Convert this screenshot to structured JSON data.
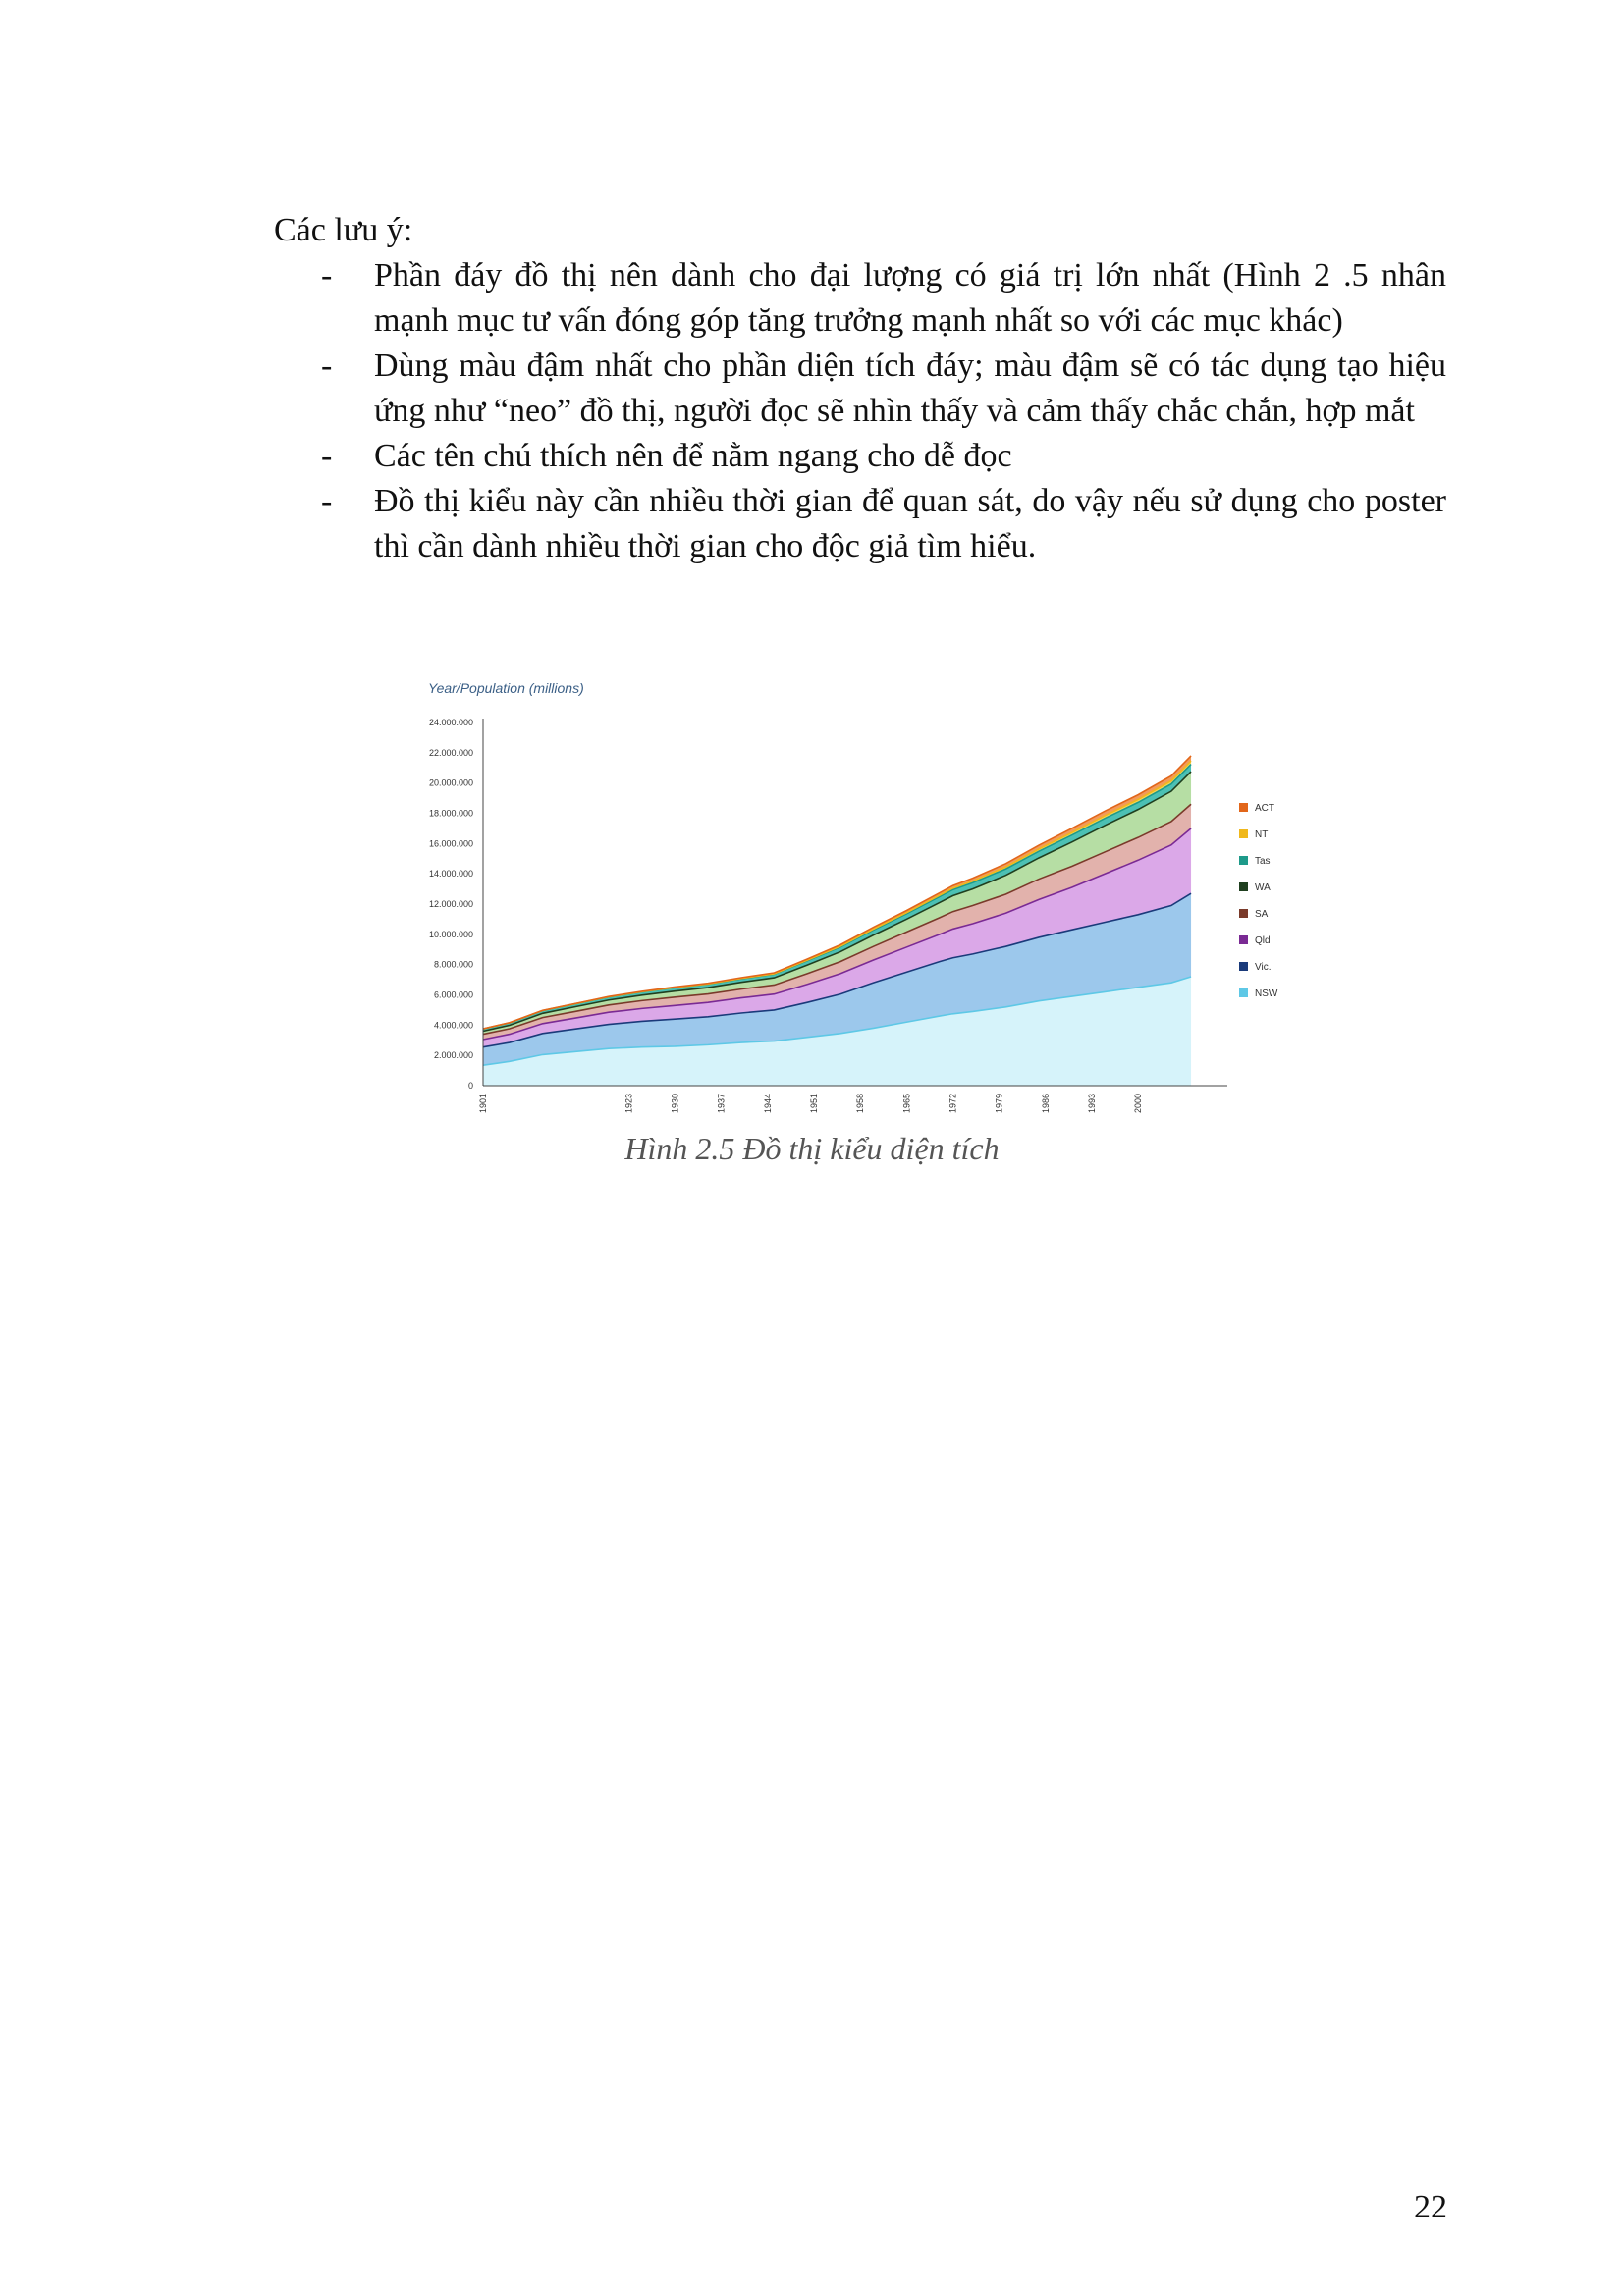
{
  "document": {
    "intro": "Các lưu ý:",
    "bullets": [
      "Phần đáy đồ thị nên dành cho đại lượng có giá trị lớn nhất (Hình 2 .5 nhân mạnh mục tư vấn đóng góp tăng trưởng mạnh nhất so với các mục khác)",
      "Dùng màu đậm nhất cho phần diện tích đáy; màu đậm sẽ có tác dụng tạo hiệu ứng như “neo” đồ thị, người đọc sẽ nhìn thấy và cảm thấy chắc chắn, hợp mắt",
      "Các tên chú thích nên để nằm ngang cho dễ đọc",
      "Đồ thị kiểu này cần nhiều thời gian để quan sát, do vậy nếu sử dụng cho poster thì cần dành nhiều thời gian cho độc giả tìm hiểu."
    ],
    "bullet_marker": "-",
    "caption": "Hình 2.5 Đồ thị kiểu diện tích",
    "page_number": "22"
  },
  "chart_data": {
    "type": "area",
    "stacked": true,
    "title": "Year/Population (millions)",
    "x": [
      1901,
      1905,
      1910,
      1915,
      1920,
      1925,
      1930,
      1935,
      1940,
      1945,
      1950,
      1955,
      1960,
      1965,
      1970,
      1972,
      1975,
      1980,
      1985,
      1990,
      1995,
      2000,
      2005,
      2008
    ],
    "x_tick_labels": [
      "1901",
      "1923",
      "1930",
      "1937",
      "1944",
      "1951",
      "1958",
      "1965",
      "1972",
      "1979",
      "1986",
      "1993",
      "2000"
    ],
    "x_ticks": [
      1901,
      1923,
      1930,
      1937,
      1944,
      1951,
      1958,
      1965,
      1972,
      1979,
      1986,
      1993,
      2000
    ],
    "xlim": [
      1901,
      2012
    ],
    "ylim": [
      0,
      24000000
    ],
    "y_ticks": [
      0,
      2000000,
      4000000,
      6000000,
      8000000,
      10000000,
      12000000,
      14000000,
      16000000,
      18000000,
      20000000,
      22000000,
      24000000
    ],
    "y_tick_labels": [
      "0",
      "2.000.000",
      "4.000.000",
      "6.000.000",
      "8.000.000",
      "10.000.000",
      "12.000.000",
      "14.000.000",
      "16.000.000",
      "18.000.000",
      "20.000.000",
      "22.000.000",
      "24.000.000"
    ],
    "legend_position": "right",
    "series": [
      {
        "name": "NSW",
        "fill": "#d6f3fa",
        "line": "#5ec8e6",
        "values": [
          1350000,
          1600000,
          2050000,
          2250000,
          2450000,
          2550000,
          2600000,
          2700000,
          2850000,
          2950000,
          3200000,
          3450000,
          3800000,
          4200000,
          4600000,
          4750000,
          4900000,
          5200000,
          5600000,
          5900000,
          6200000,
          6500000,
          6800000,
          7200000
        ]
      },
      {
        "name": "Vic.",
        "fill": "#9cc8ec",
        "line": "#1a3a7a",
        "values": [
          1200000,
          1250000,
          1400000,
          1500000,
          1600000,
          1700000,
          1800000,
          1850000,
          1950000,
          2050000,
          2300000,
          2600000,
          3000000,
          3300000,
          3600000,
          3700000,
          3800000,
          4000000,
          4200000,
          4400000,
          4600000,
          4800000,
          5100000,
          5500000
        ]
      },
      {
        "name": "Qld",
        "fill": "#dba8e8",
        "line": "#7a2a94",
        "values": [
          500000,
          550000,
          650000,
          720000,
          800000,
          850000,
          900000,
          950000,
          1000000,
          1050000,
          1200000,
          1350000,
          1500000,
          1650000,
          1800000,
          1900000,
          2000000,
          2200000,
          2500000,
          2800000,
          3200000,
          3600000,
          4000000,
          4300000
        ]
      },
      {
        "name": "SA",
        "fill": "#e2b2ac",
        "line": "#7a3a2a",
        "values": [
          350000,
          360000,
          400000,
          440000,
          480000,
          520000,
          550000,
          560000,
          580000,
          600000,
          700000,
          800000,
          900000,
          1000000,
          1100000,
          1150000,
          1200000,
          1250000,
          1350000,
          1400000,
          1450000,
          1500000,
          1550000,
          1600000
        ]
      },
      {
        "name": "WA",
        "fill": "#b6dea4",
        "line": "#1f3f1f",
        "values": [
          200000,
          230000,
          280000,
          310000,
          330000,
          360000,
          400000,
          420000,
          450000,
          480000,
          570000,
          650000,
          750000,
          850000,
          1000000,
          1050000,
          1100000,
          1250000,
          1400000,
          1600000,
          1750000,
          1850000,
          2000000,
          2150000
        ]
      },
      {
        "name": "Tas",
        "fill": "#4cc0b4",
        "line": "#1e9a8a",
        "values": [
          150000,
          160000,
          180000,
          190000,
          200000,
          210000,
          220000,
          225000,
          230000,
          240000,
          280000,
          310000,
          340000,
          360000,
          390000,
          400000,
          410000,
          420000,
          440000,
          460000,
          470000,
          470000,
          480000,
          490000
        ]
      },
      {
        "name": "NT",
        "fill": "#f6d45c",
        "line": "#f0b81c",
        "values": [
          5000,
          8000,
          10000,
          12000,
          14000,
          16000,
          18000,
          20000,
          25000,
          30000,
          40000,
          50000,
          60000,
          70000,
          90000,
          100000,
          110000,
          130000,
          150000,
          165000,
          180000,
          195000,
          205000,
          215000
        ]
      },
      {
        "name": "ACT",
        "fill": "#f29a5a",
        "line": "#e2661a",
        "values": [
          5000,
          6000,
          8000,
          10000,
          15000,
          25000,
          35000,
          40000,
          50000,
          60000,
          80000,
          100000,
          120000,
          140000,
          160000,
          170000,
          190000,
          220000,
          250000,
          280000,
          300000,
          310000,
          330000,
          340000
        ]
      }
    ]
  }
}
